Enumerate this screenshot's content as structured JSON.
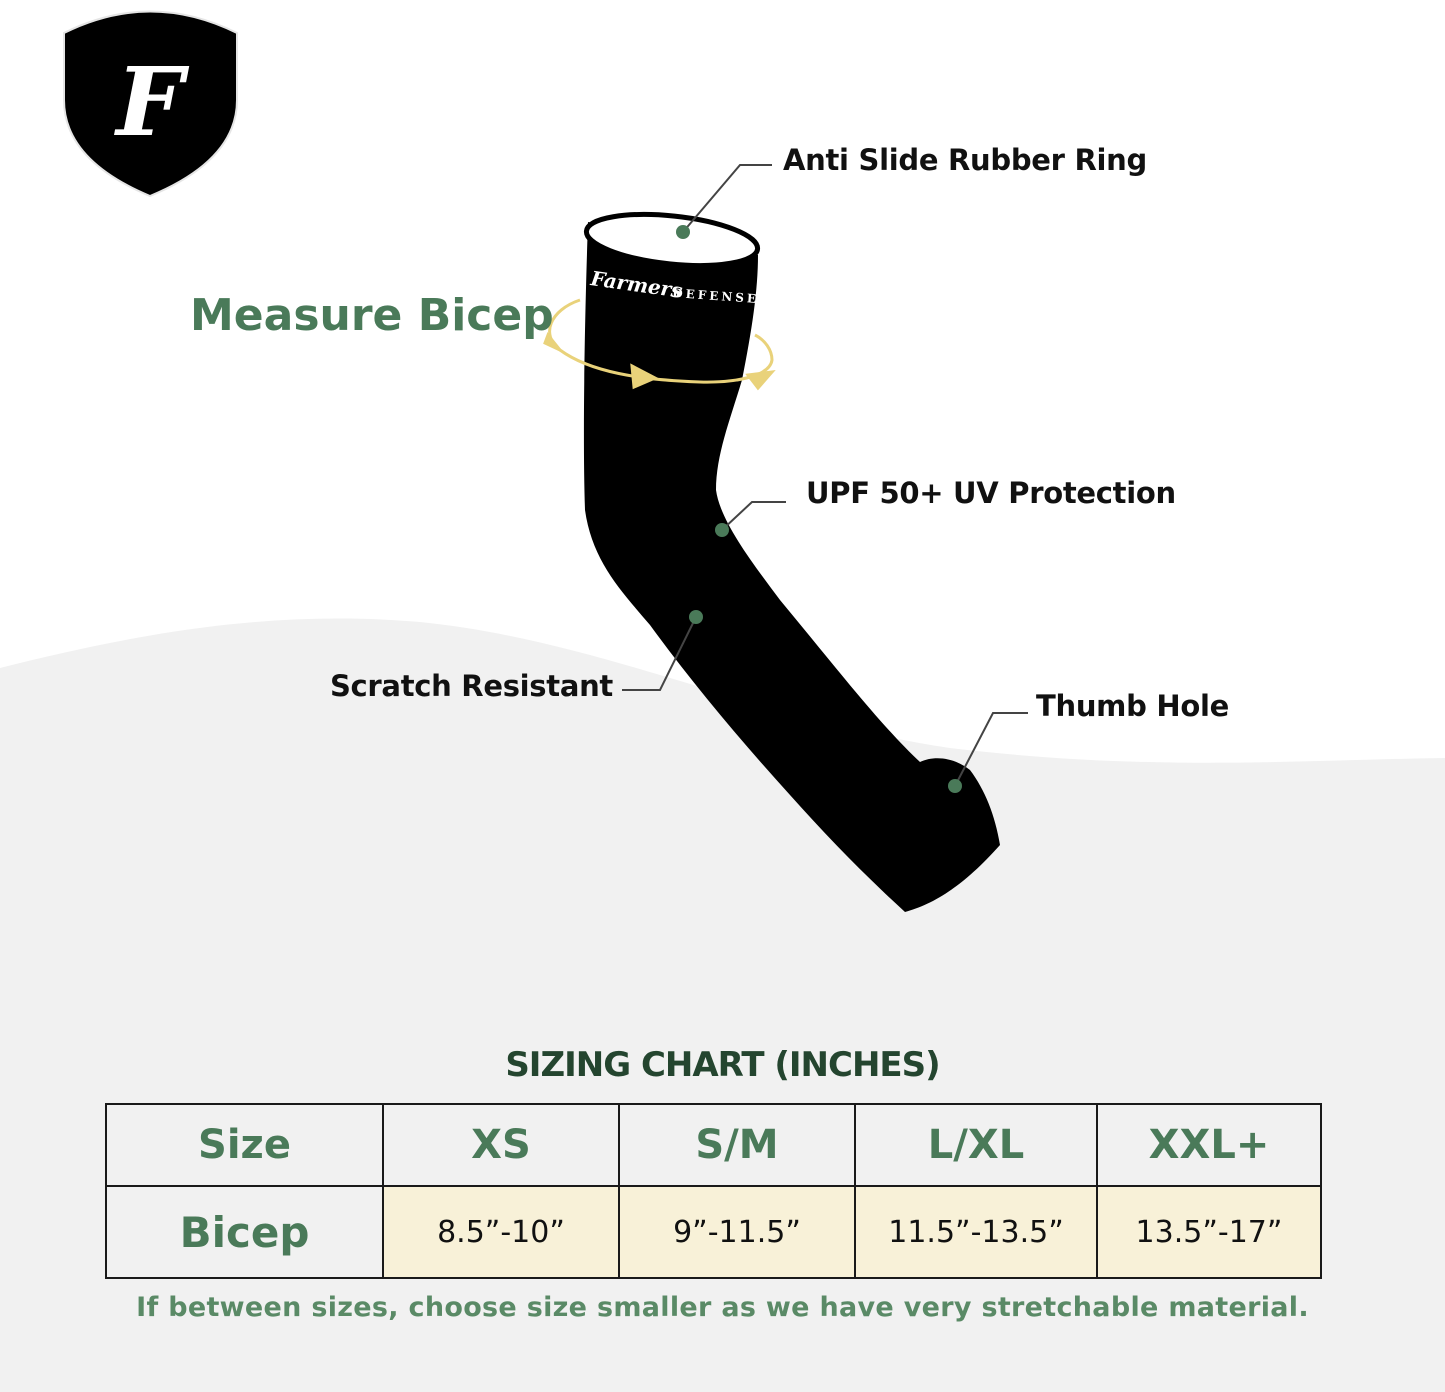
{
  "brand": {
    "logo_letter": "F",
    "sleeve_print": "Farmers DEFENSE"
  },
  "measure_label": "Measure Bicep",
  "callouts": {
    "ring": "Anti Slide Rubber Ring",
    "upf": "UPF 50+ UV Protection",
    "scratch": "Scratch Resistant",
    "thumb": "Thumb Hole"
  },
  "sizing": {
    "title": "SIZING CHART (INCHES)",
    "header": [
      "Size",
      "XS",
      "S/M",
      "L/XL",
      "XXL+"
    ],
    "row": [
      "Bicep",
      "8.5”-10”",
      "9”-11.5”",
      "11.5”-13.5”",
      "13.5”-17”"
    ],
    "note": "If between sizes, choose size smaller as we have very stretchable material."
  },
  "colors": {
    "accent_green": "#4a7a59",
    "title_green": "#24452f",
    "cell_cream": "#f8f1d8",
    "arrow_yellow": "#e9d27a"
  }
}
